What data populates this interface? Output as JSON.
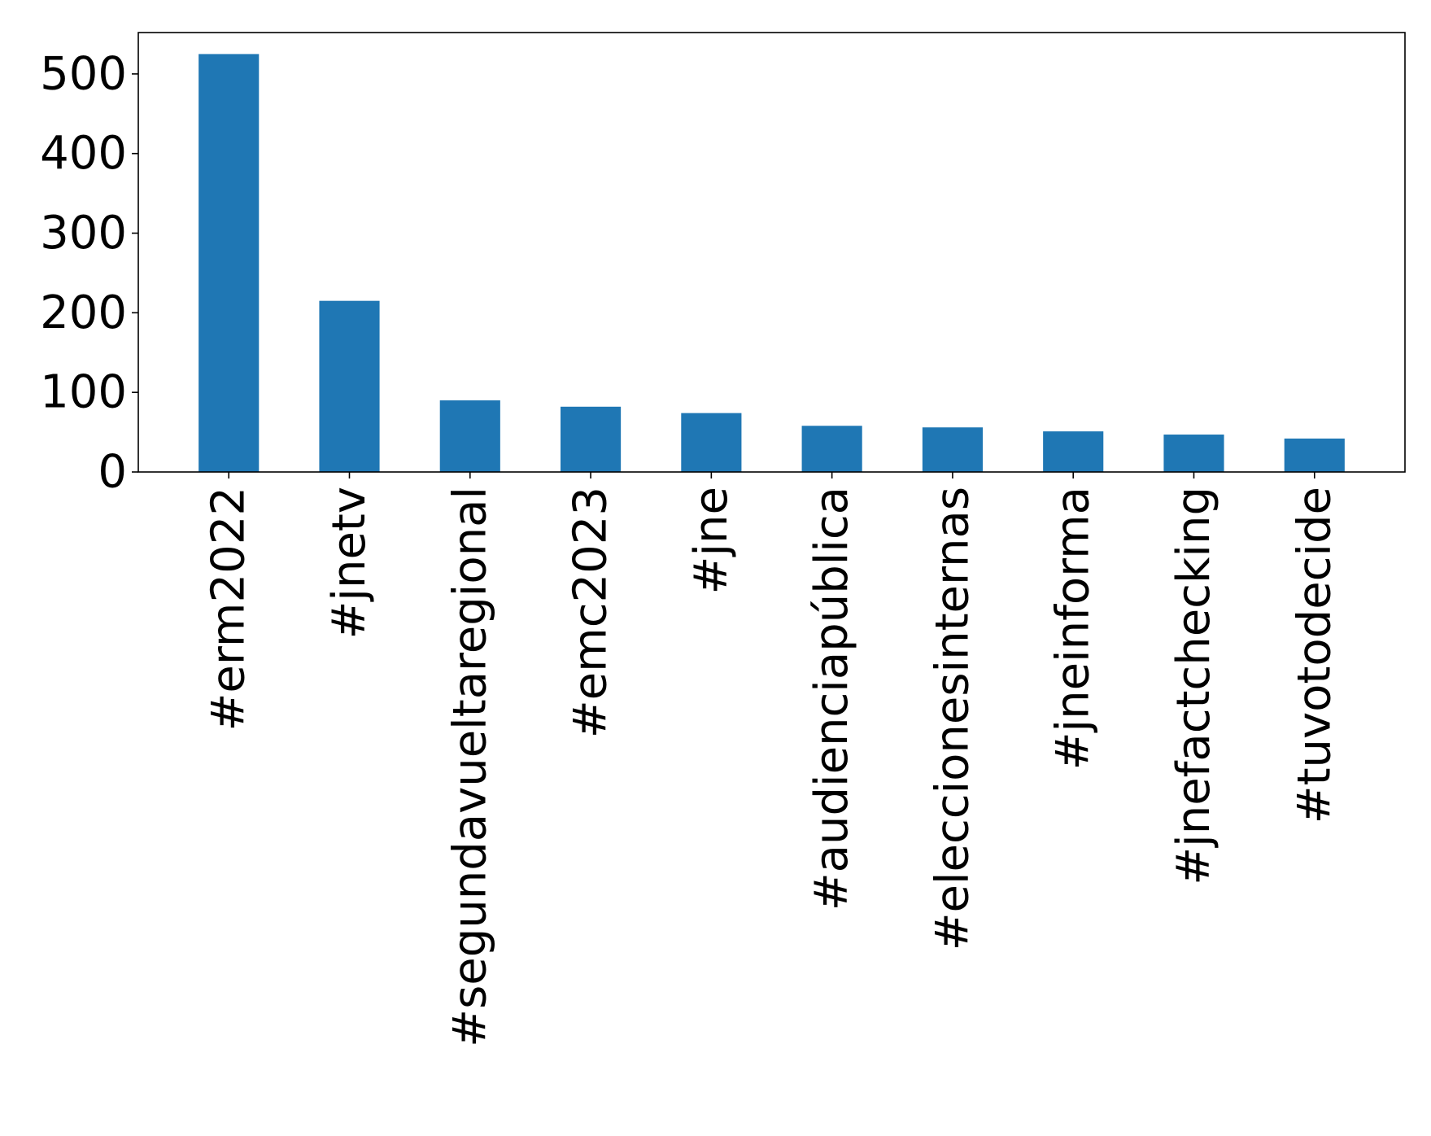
{
  "chart_data": {
    "type": "bar",
    "title": "",
    "xlabel": "",
    "ylabel": "",
    "categories": [
      "#erm2022",
      "#jnetv",
      "#segundavueltaregional",
      "#emc2023",
      "#jne",
      "#audienciapública",
      "#eleccionesinternas",
      "#jneinforma",
      "#jnefactchecking",
      "#tuvotodecide"
    ],
    "values": [
      525,
      215,
      90,
      82,
      74,
      58,
      56,
      51,
      47,
      42
    ],
    "ylim": [
      0,
      552
    ],
    "yticks": [
      0,
      100,
      200,
      300,
      400,
      500
    ],
    "bar_color": "#1f77b4",
    "grid": false,
    "legend": "none"
  }
}
